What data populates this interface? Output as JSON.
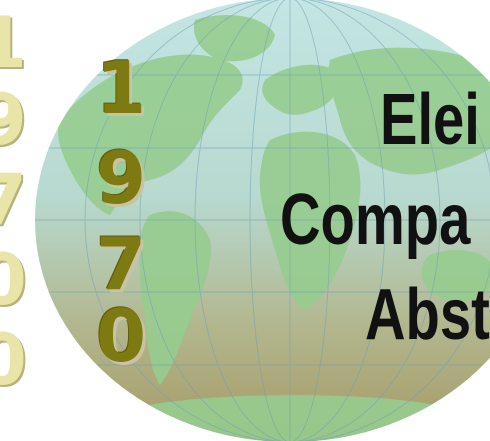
{
  "left_strip": {
    "digits": [
      "1",
      "9",
      "7",
      "0",
      "0"
    ]
  },
  "year": {
    "digits": [
      "1",
      "9",
      "7",
      "0"
    ]
  },
  "title": {
    "lines": [
      "Elei",
      "Compa",
      "Abst"
    ]
  },
  "colors": {
    "ocean_top": "#bfe2e0",
    "ocean_bottom": "#a89e6a",
    "land": "#93c98d",
    "year_text": "#7e7a12",
    "title_text": "#111111"
  },
  "icons": {
    "background": "world-map-globe"
  }
}
